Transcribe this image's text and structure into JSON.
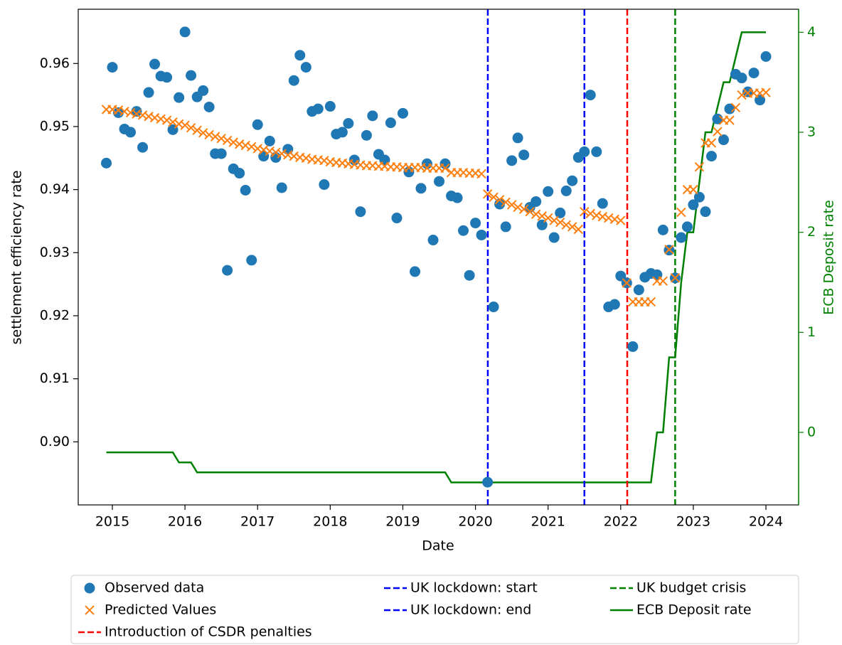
{
  "chart_data": {
    "type": "scatter",
    "xlabel": "Date",
    "ylabel": "settlement efficiency rate",
    "y2label": "ECB Deposit rate",
    "xlim": [
      2014.53,
      2024.45
    ],
    "ylim": [
      0.89,
      0.9686
    ],
    "y2lim": [
      -0.725,
      4.23
    ],
    "xticks": [
      2015,
      2016,
      2017,
      2018,
      2019,
      2020,
      2021,
      2022,
      2023,
      2024
    ],
    "yticks": [
      {
        "value": 0.9,
        "label": "0.90"
      },
      0.91,
      0.92,
      0.93,
      0.94,
      0.95,
      0.96
    ],
    "y2ticks": [
      0,
      1,
      2,
      3,
      4
    ],
    "x": [
      2014.917,
      2015.0,
      2015.083,
      2015.167,
      2015.25,
      2015.333,
      2015.417,
      2015.5,
      2015.583,
      2015.667,
      2015.75,
      2015.833,
      2015.917,
      2016.0,
      2016.083,
      2016.167,
      2016.25,
      2016.333,
      2016.417,
      2016.5,
      2016.583,
      2016.667,
      2016.75,
      2016.833,
      2016.917,
      2017.0,
      2017.083,
      2017.167,
      2017.25,
      2017.333,
      2017.417,
      2017.5,
      2017.583,
      2017.667,
      2017.75,
      2017.833,
      2017.917,
      2018.0,
      2018.083,
      2018.167,
      2018.25,
      2018.333,
      2018.417,
      2018.5,
      2018.583,
      2018.667,
      2018.75,
      2018.833,
      2018.917,
      2019.0,
      2019.083,
      2019.167,
      2019.25,
      2019.333,
      2019.417,
      2019.5,
      2019.583,
      2019.667,
      2019.75,
      2019.833,
      2019.917,
      2020.0,
      2020.083,
      2020.167,
      2020.25,
      2020.333,
      2020.417,
      2020.5,
      2020.583,
      2020.667,
      2020.75,
      2020.833,
      2020.917,
      2021.0,
      2021.083,
      2021.167,
      2021.25,
      2021.333,
      2021.417,
      2021.5,
      2021.583,
      2021.667,
      2021.75,
      2021.833,
      2021.917,
      2022.0,
      2022.083,
      2022.167,
      2022.25,
      2022.333,
      2022.417,
      2022.5,
      2022.583,
      2022.667,
      2022.75,
      2022.833,
      2022.917,
      2023.0,
      2023.083,
      2023.167,
      2023.25,
      2023.333,
      2023.417,
      2023.5,
      2023.583,
      2023.667,
      2023.75,
      2023.833,
      2023.917,
      2024.0
    ],
    "series": [
      {
        "name": "Observed data",
        "type": "scatter",
        "marker": "o",
        "color": "#1f77b4",
        "values": [
          0.9442,
          0.9594,
          0.9522,
          0.9496,
          0.9491,
          0.9524,
          0.9467,
          0.9554,
          0.9599,
          0.958,
          0.9578,
          0.9495,
          0.9546,
          0.965,
          0.9581,
          0.9547,
          0.9557,
          0.9531,
          0.9457,
          0.9457,
          0.9272,
          0.9433,
          0.9426,
          0.9399,
          0.9288,
          0.9503,
          0.9453,
          0.9477,
          0.9451,
          0.9403,
          0.9464,
          0.9573,
          0.9613,
          0.9594,
          0.9524,
          0.9528,
          0.9408,
          0.9532,
          0.9488,
          0.9491,
          0.9505,
          0.9447,
          0.9365,
          0.9486,
          0.9517,
          0.9456,
          0.9447,
          0.9506,
          0.9355,
          0.9521,
          0.9428,
          0.927,
          0.9402,
          0.9441,
          0.932,
          0.9413,
          0.9441,
          0.939,
          0.9387,
          0.9335,
          0.9264,
          0.9347,
          0.9328,
          0.8936,
          0.9214,
          0.9377,
          0.9341,
          0.9446,
          0.9482,
          0.9455,
          0.9372,
          0.9381,
          0.9344,
          0.9397,
          0.9324,
          0.9363,
          0.9398,
          0.9414,
          0.9451,
          0.946,
          0.955,
          0.946,
          0.9378,
          0.9214,
          0.9218,
          0.9263,
          0.9252,
          0.9151,
          0.9241,
          0.9261,
          0.9267,
          0.9265,
          0.9336,
          0.9304,
          0.926,
          0.9324,
          0.9341,
          0.9376,
          0.9388,
          0.9365,
          0.9453,
          0.9512,
          0.9479,
          0.9528,
          0.9583,
          0.9577,
          0.9555,
          0.9585,
          0.9542,
          0.9611
        ]
      },
      {
        "name": "Predicted Values",
        "type": "scatter",
        "marker": "x",
        "color": "#ff7f0e",
        "values": [
          0.9527,
          0.9527,
          0.9526,
          0.9524,
          0.9522,
          0.952,
          0.9518,
          0.9516,
          0.9514,
          0.9512,
          0.951,
          0.9507,
          0.9504,
          0.9502,
          0.9498,
          0.9494,
          0.949,
          0.9487,
          0.9484,
          0.9481,
          0.9478,
          0.9475,
          0.9472,
          0.947,
          0.9468,
          0.9465,
          0.9463,
          0.9461,
          0.9459,
          0.9457,
          0.9455,
          0.9453,
          0.9451,
          0.945,
          0.9448,
          0.9447,
          0.9446,
          0.9444,
          0.9443,
          0.9442,
          0.9441,
          0.944,
          0.9439,
          0.9438,
          0.9438,
          0.9437,
          0.9437,
          0.9436,
          0.9436,
          0.9435,
          0.9435,
          0.9435,
          0.9435,
          0.9434,
          0.9434,
          0.9434,
          0.9434,
          0.9427,
          0.9427,
          0.9427,
          0.9426,
          0.9426,
          0.9425,
          0.9393,
          0.9388,
          0.9384,
          0.938,
          0.9376,
          0.9372,
          0.9369,
          0.9365,
          0.9361,
          0.9358,
          0.9355,
          0.9351,
          0.9348,
          0.9344,
          0.9341,
          0.9337,
          0.9365,
          0.9362,
          0.9359,
          0.9357,
          0.9355,
          0.9353,
          0.9351,
          0.9252,
          0.9222,
          0.9222,
          0.9222,
          0.9222,
          0.9255,
          0.9255,
          0.9305,
          0.926,
          0.9364,
          0.94,
          0.94,
          0.9436,
          0.9474,
          0.9474,
          0.9492,
          0.951,
          0.951,
          0.953,
          0.955,
          0.9553,
          0.9553,
          0.9553,
          0.9554
        ]
      },
      {
        "name": "ECB Deposit rate",
        "type": "line",
        "axis": "y2",
        "color": "#008000",
        "values": [
          -0.2,
          -0.2,
          -0.2,
          -0.2,
          -0.2,
          -0.2,
          -0.2,
          -0.2,
          -0.2,
          -0.2,
          -0.2,
          -0.2,
          -0.3,
          -0.3,
          -0.3,
          -0.4,
          -0.4,
          -0.4,
          -0.4,
          -0.4,
          -0.4,
          -0.4,
          -0.4,
          -0.4,
          -0.4,
          -0.4,
          -0.4,
          -0.4,
          -0.4,
          -0.4,
          -0.4,
          -0.4,
          -0.4,
          -0.4,
          -0.4,
          -0.4,
          -0.4,
          -0.4,
          -0.4,
          -0.4,
          -0.4,
          -0.4,
          -0.4,
          -0.4,
          -0.4,
          -0.4,
          -0.4,
          -0.4,
          -0.4,
          -0.4,
          -0.4,
          -0.4,
          -0.4,
          -0.4,
          -0.4,
          -0.4,
          -0.4,
          -0.5,
          -0.5,
          -0.5,
          -0.5,
          -0.5,
          -0.5,
          -0.5,
          -0.5,
          -0.5,
          -0.5,
          -0.5,
          -0.5,
          -0.5,
          -0.5,
          -0.5,
          -0.5,
          -0.5,
          -0.5,
          -0.5,
          -0.5,
          -0.5,
          -0.5,
          -0.5,
          -0.5,
          -0.5,
          -0.5,
          -0.5,
          -0.5,
          -0.5,
          -0.5,
          -0.5,
          -0.5,
          -0.5,
          -0.5,
          0,
          0,
          0.75,
          0.75,
          1.5,
          2.0,
          2.0,
          2.5,
          3.0,
          3.0,
          3.25,
          3.5,
          3.5,
          3.75,
          4,
          4,
          4,
          4,
          4
        ]
      }
    ],
    "vlines": [
      {
        "x": 2020.17,
        "label": "UK lockdown: start",
        "color": "#0000ff"
      },
      {
        "x": 2021.5,
        "label": "UK lockdown: end",
        "color": "#0000ff"
      },
      {
        "x": 2022.09,
        "label": "Introduction of CSDR penalties",
        "color": "#ff0000"
      },
      {
        "x": 2022.75,
        "label": "UK budget crisis",
        "color": "#008000"
      }
    ]
  }
}
